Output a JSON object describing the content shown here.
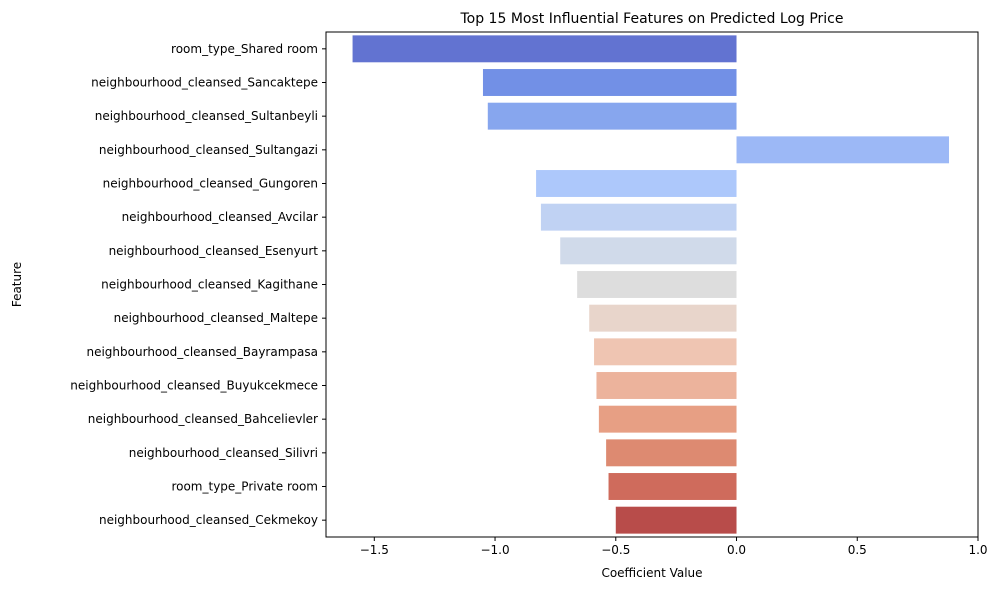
{
  "chart_data": {
    "type": "bar",
    "orientation": "horizontal",
    "title": "Top 15 Most Influential Features on Predicted Log Price",
    "xlabel": "Coefficient Value",
    "ylabel": "Feature",
    "xlim": [
      -1.7,
      1.0
    ],
    "xticks": [
      -1.5,
      -1.0,
      -0.5,
      0.0,
      0.5,
      1.0
    ],
    "xtick_labels": [
      "−1.5",
      "−1.0",
      "−0.5",
      "0.0",
      "0.5",
      "1.0"
    ],
    "grid": false,
    "palette": "coolwarm",
    "categories": [
      "room_type_Shared room",
      "neighbourhood_cleansed_Sancaktepe",
      "neighbourhood_cleansed_Sultanbeyli",
      "neighbourhood_cleansed_Sultangazi",
      "neighbourhood_cleansed_Gungoren",
      "neighbourhood_cleansed_Avcilar",
      "neighbourhood_cleansed_Esenyurt",
      "neighbourhood_cleansed_Kagithane",
      "neighbourhood_cleansed_Maltepe",
      "neighbourhood_cleansed_Bayrampasa",
      "neighbourhood_cleansed_Buyukcekmece",
      "neighbourhood_cleansed_Bahcelievler",
      "neighbourhood_cleansed_Silivri",
      "room_type_Private room",
      "neighbourhood_cleansed_Cekmekoy"
    ],
    "values": [
      -1.59,
      -1.05,
      -1.03,
      0.88,
      -0.83,
      -0.81,
      -0.73,
      -0.66,
      -0.61,
      -0.59,
      -0.58,
      -0.57,
      -0.54,
      -0.53,
      -0.5
    ],
    "colors": [
      "#6273d1",
      "#7290e6",
      "#87a6ee",
      "#9cb8f6",
      "#adc8fb",
      "#c0d2f3",
      "#d0daea",
      "#dddddd",
      "#e8d5cb",
      "#efc5b2",
      "#ecb39c",
      "#e79f84",
      "#dd8a71",
      "#cf6b5c",
      "#b84c4a"
    ]
  }
}
